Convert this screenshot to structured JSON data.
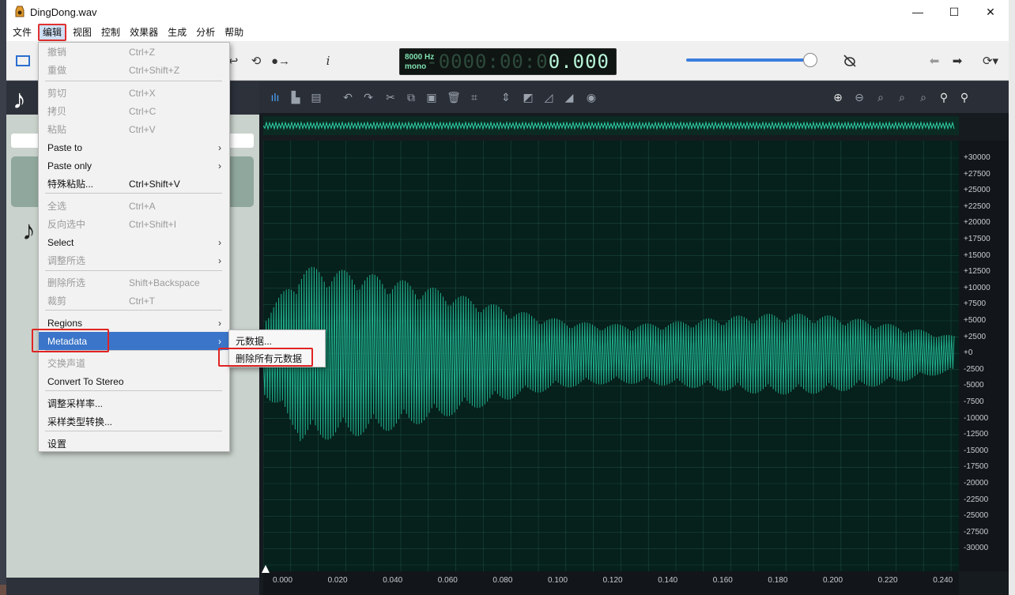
{
  "window": {
    "title": "DingDong.wav",
    "controls": [
      "—",
      "☐",
      "✕"
    ]
  },
  "menubar": [
    "文件",
    "编辑",
    "视图",
    "控制",
    "效果器",
    "生成",
    "分析",
    "帮助"
  ],
  "active_menu": "编辑",
  "lcd": {
    "rate": "8000 Hz",
    "channels": "mono",
    "time_dim": "-0000:00:0",
    "time_value": "0.000"
  },
  "volume_fraction": 0.95,
  "edit_menu": [
    {
      "label": "撤销",
      "shortcut": "Ctrl+Z",
      "disabled": true
    },
    {
      "label": "重做",
      "shortcut": "Ctrl+Shift+Z",
      "disabled": true
    },
    {
      "label": "剪切",
      "shortcut": "Ctrl+X",
      "disabled": true
    },
    {
      "label": "拷贝",
      "shortcut": "Ctrl+C",
      "disabled": true
    },
    {
      "label": "粘贴",
      "shortcut": "Ctrl+V",
      "disabled": true
    },
    {
      "label": "Paste to",
      "shortcut": "",
      "submenu": true
    },
    {
      "label": "Paste only",
      "shortcut": "",
      "submenu": true
    },
    {
      "label": "特殊粘贴...",
      "shortcut": "Ctrl+Shift+V"
    },
    {
      "label": "全选",
      "shortcut": "Ctrl+A",
      "disabled": true
    },
    {
      "label": "反向选中",
      "shortcut": "Ctrl+Shift+I",
      "disabled": true
    },
    {
      "label": "Select",
      "shortcut": "",
      "submenu": true
    },
    {
      "label": "调整所选",
      "shortcut": "",
      "submenu": true,
      "disabled": true
    },
    {
      "label": "删除所选",
      "shortcut": "Shift+Backspace",
      "disabled": true
    },
    {
      "label": "裁剪",
      "shortcut": "Ctrl+T",
      "disabled": true
    },
    {
      "label": "Regions",
      "shortcut": "",
      "submenu": true
    },
    {
      "label": "Metadata",
      "shortcut": "",
      "submenu": true,
      "highlight": true
    },
    {
      "label": "交换声道",
      "shortcut": "",
      "disabled": true
    },
    {
      "label": "Convert To Stereo",
      "shortcut": ""
    },
    {
      "label": "调整采样率...",
      "shortcut": ""
    },
    {
      "label": "采样类型转换...",
      "shortcut": ""
    },
    {
      "label": "设置",
      "shortcut": ""
    }
  ],
  "metadata_submenu": [
    "元数据...",
    "删除所有元数据"
  ],
  "y_axis_labels": [
    "+30000",
    "+27500",
    "+25000",
    "+22500",
    "+20000",
    "+17500",
    "+15000",
    "+12500",
    "+10000",
    "+7500",
    "+5000",
    "+2500",
    "+0",
    "-2500",
    "-5000",
    "-7500",
    "-10000",
    "-12500",
    "-15000",
    "-17500",
    "-20000",
    "-22500",
    "-25000",
    "-27500",
    "-30000"
  ],
  "x_axis_labels": [
    "0.000",
    "0.020",
    "0.040",
    "0.060",
    "0.080",
    "0.100",
    "0.120",
    "0.140",
    "0.160",
    "0.180",
    "0.200",
    "0.220",
    "0.240"
  ],
  "colors": {
    "accent": "#3b75c9",
    "highlight_box": "#e02424",
    "wave": "#1fae8c"
  }
}
